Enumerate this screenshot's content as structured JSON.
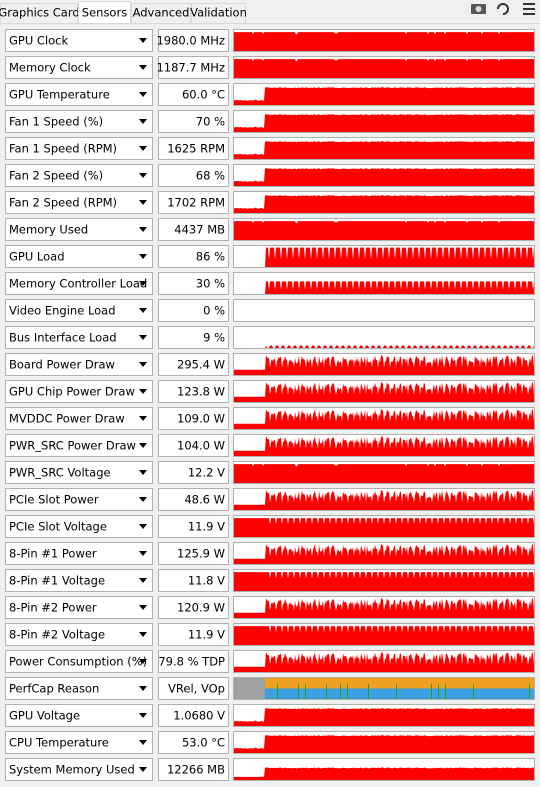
{
  "tabs": [
    "Graphics Card",
    "Sensors",
    "Advanced",
    "Validation"
  ],
  "rows": [
    {
      "label": "GPU Clock",
      "value": "1980.0 MHz"
    },
    {
      "label": "Memory Clock",
      "value": "1187.7 MHz"
    },
    {
      "label": "GPU Temperature",
      "value": "60.0 °C"
    },
    {
      "label": "Fan 1 Speed (%)",
      "value": "70 %"
    },
    {
      "label": "Fan 1 Speed (RPM)",
      "value": "1625 RPM"
    },
    {
      "label": "Fan 2 Speed (%)",
      "value": "68 %"
    },
    {
      "label": "Fan 2 Speed (RPM)",
      "value": "1702 RPM"
    },
    {
      "label": "Memory Used",
      "value": "4437 MB"
    },
    {
      "label": "GPU Load",
      "value": "86 %"
    },
    {
      "label": "Memory Controller Load",
      "value": "30 %"
    },
    {
      "label": "Video Engine Load",
      "value": "0 %"
    },
    {
      "label": "Bus Interface Load",
      "value": "9 %"
    },
    {
      "label": "Board Power Draw",
      "value": "295.4 W"
    },
    {
      "label": "GPU Chip Power Draw",
      "value": "123.8 W"
    },
    {
      "label": "MVDDC Power Draw",
      "value": "109.0 W"
    },
    {
      "label": "PWR_SRC Power Draw",
      "value": "104.0 W"
    },
    {
      "label": "PWR_SRC Voltage",
      "value": "12.2 V"
    },
    {
      "label": "PCIe Slot Power",
      "value": "48.6 W"
    },
    {
      "label": "PCIe Slot Voltage",
      "value": "11.9 V"
    },
    {
      "label": "8-Pin #1 Power",
      "value": "125.9 W"
    },
    {
      "label": "8-Pin #1 Voltage",
      "value": "11.8 V"
    },
    {
      "label": "8-Pin #2 Power",
      "value": "120.9 W"
    },
    {
      "label": "8-Pin #2 Voltage",
      "value": "11.9 V"
    },
    {
      "label": "Power Consumption (%)",
      "value": "79.8 % TDP"
    },
    {
      "label": "PerfCap Reason",
      "value": "VRel, VOp"
    },
    {
      "label": "GPU Voltage",
      "value": "1.0680 V"
    },
    {
      "label": "CPU Temperature",
      "value": "53.0 °C"
    },
    {
      "label": "System Memory Used",
      "value": "12266 MB"
    }
  ]
}
